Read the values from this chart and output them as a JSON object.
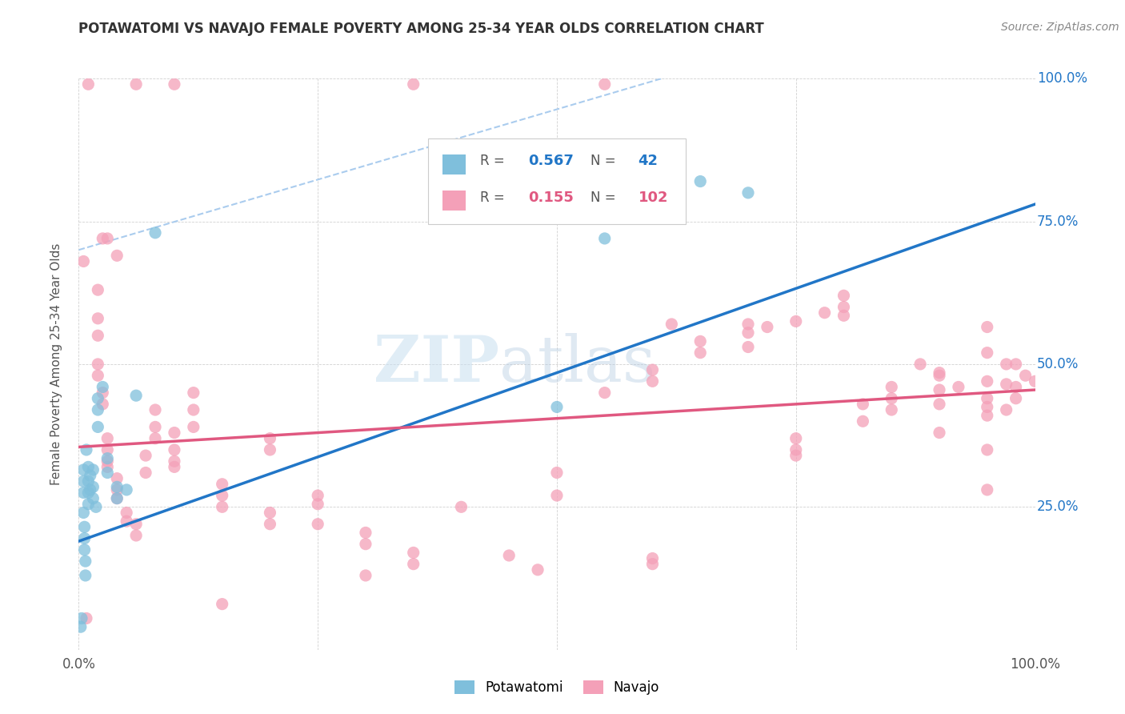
{
  "title": "POTAWATOMI VS NAVAJO FEMALE POVERTY AMONG 25-34 YEAR OLDS CORRELATION CHART",
  "source": "Source: ZipAtlas.com",
  "ylabel": "Female Poverty Among 25-34 Year Olds",
  "potawatomi_color": "#7fbfdc",
  "navajo_color": "#f4a0b8",
  "blue_line_color": "#2176c7",
  "pink_line_color": "#e05880",
  "dash_line_color": "#aaccee",
  "potawatomi_R": "0.567",
  "potawatomi_N": "42",
  "navajo_R": "0.155",
  "navajo_N": "102",
  "watermark_zip": "ZIP",
  "watermark_atlas": "atlas",
  "potawatomi_points": [
    [
      0.005,
      0.315
    ],
    [
      0.005,
      0.295
    ],
    [
      0.005,
      0.275
    ],
    [
      0.005,
      0.24
    ],
    [
      0.006,
      0.215
    ],
    [
      0.006,
      0.195
    ],
    [
      0.006,
      0.175
    ],
    [
      0.007,
      0.155
    ],
    [
      0.007,
      0.13
    ],
    [
      0.008,
      0.35
    ],
    [
      0.01,
      0.32
    ],
    [
      0.01,
      0.295
    ],
    [
      0.01,
      0.275
    ],
    [
      0.01,
      0.255
    ],
    [
      0.012,
      0.305
    ],
    [
      0.012,
      0.28
    ],
    [
      0.015,
      0.315
    ],
    [
      0.015,
      0.285
    ],
    [
      0.015,
      0.265
    ],
    [
      0.018,
      0.25
    ],
    [
      0.02,
      0.44
    ],
    [
      0.02,
      0.42
    ],
    [
      0.02,
      0.39
    ],
    [
      0.025,
      0.46
    ],
    [
      0.03,
      0.335
    ],
    [
      0.03,
      0.31
    ],
    [
      0.04,
      0.285
    ],
    [
      0.04,
      0.265
    ],
    [
      0.05,
      0.28
    ],
    [
      0.06,
      0.445
    ],
    [
      0.08,
      0.73
    ],
    [
      0.5,
      0.425
    ],
    [
      0.55,
      0.72
    ],
    [
      0.002,
      0.04
    ],
    [
      0.003,
      0.055
    ],
    [
      0.65,
      0.82
    ],
    [
      0.7,
      0.8
    ]
  ],
  "navajo_points": [
    [
      0.01,
      0.99
    ],
    [
      0.06,
      0.99
    ],
    [
      0.1,
      0.99
    ],
    [
      0.35,
      0.99
    ],
    [
      0.55,
      0.99
    ],
    [
      0.005,
      0.68
    ],
    [
      0.02,
      0.63
    ],
    [
      0.02,
      0.58
    ],
    [
      0.03,
      0.72
    ],
    [
      0.04,
      0.69
    ],
    [
      0.02,
      0.55
    ],
    [
      0.02,
      0.5
    ],
    [
      0.02,
      0.48
    ],
    [
      0.025,
      0.45
    ],
    [
      0.025,
      0.43
    ],
    [
      0.03,
      0.37
    ],
    [
      0.03,
      0.35
    ],
    [
      0.03,
      0.33
    ],
    [
      0.03,
      0.32
    ],
    [
      0.04,
      0.3
    ],
    [
      0.04,
      0.28
    ],
    [
      0.04,
      0.265
    ],
    [
      0.05,
      0.24
    ],
    [
      0.05,
      0.225
    ],
    [
      0.06,
      0.22
    ],
    [
      0.06,
      0.2
    ],
    [
      0.07,
      0.34
    ],
    [
      0.07,
      0.31
    ],
    [
      0.08,
      0.42
    ],
    [
      0.08,
      0.39
    ],
    [
      0.08,
      0.37
    ],
    [
      0.1,
      0.38
    ],
    [
      0.1,
      0.35
    ],
    [
      0.1,
      0.33
    ],
    [
      0.1,
      0.32
    ],
    [
      0.12,
      0.45
    ],
    [
      0.12,
      0.42
    ],
    [
      0.12,
      0.39
    ],
    [
      0.15,
      0.29
    ],
    [
      0.15,
      0.27
    ],
    [
      0.15,
      0.25
    ],
    [
      0.15,
      0.08
    ],
    [
      0.2,
      0.37
    ],
    [
      0.2,
      0.35
    ],
    [
      0.2,
      0.24
    ],
    [
      0.2,
      0.22
    ],
    [
      0.25,
      0.27
    ],
    [
      0.25,
      0.255
    ],
    [
      0.25,
      0.22
    ],
    [
      0.3,
      0.205
    ],
    [
      0.3,
      0.185
    ],
    [
      0.3,
      0.13
    ],
    [
      0.35,
      0.17
    ],
    [
      0.35,
      0.15
    ],
    [
      0.4,
      0.25
    ],
    [
      0.45,
      0.165
    ],
    [
      0.48,
      0.14
    ],
    [
      0.5,
      0.31
    ],
    [
      0.5,
      0.27
    ],
    [
      0.55,
      0.45
    ],
    [
      0.6,
      0.49
    ],
    [
      0.6,
      0.47
    ],
    [
      0.6,
      0.16
    ],
    [
      0.6,
      0.15
    ],
    [
      0.62,
      0.57
    ],
    [
      0.65,
      0.54
    ],
    [
      0.65,
      0.52
    ],
    [
      0.7,
      0.57
    ],
    [
      0.7,
      0.555
    ],
    [
      0.7,
      0.53
    ],
    [
      0.72,
      0.565
    ],
    [
      0.75,
      0.575
    ],
    [
      0.75,
      0.37
    ],
    [
      0.75,
      0.35
    ],
    [
      0.75,
      0.34
    ],
    [
      0.78,
      0.59
    ],
    [
      0.8,
      0.62
    ],
    [
      0.8,
      0.6
    ],
    [
      0.8,
      0.585
    ],
    [
      0.82,
      0.43
    ],
    [
      0.82,
      0.4
    ],
    [
      0.85,
      0.46
    ],
    [
      0.85,
      0.44
    ],
    [
      0.85,
      0.42
    ],
    [
      0.88,
      0.5
    ],
    [
      0.9,
      0.485
    ],
    [
      0.9,
      0.48
    ],
    [
      0.9,
      0.455
    ],
    [
      0.9,
      0.43
    ],
    [
      0.9,
      0.38
    ],
    [
      0.92,
      0.46
    ],
    [
      0.95,
      0.565
    ],
    [
      0.95,
      0.52
    ],
    [
      0.95,
      0.47
    ],
    [
      0.95,
      0.44
    ],
    [
      0.95,
      0.425
    ],
    [
      0.95,
      0.41
    ],
    [
      0.95,
      0.35
    ],
    [
      0.95,
      0.28
    ],
    [
      0.97,
      0.5
    ],
    [
      0.97,
      0.465
    ],
    [
      0.97,
      0.42
    ],
    [
      0.98,
      0.5
    ],
    [
      0.98,
      0.46
    ],
    [
      0.98,
      0.44
    ],
    [
      0.99,
      0.48
    ],
    [
      1.0,
      0.47
    ],
    [
      0.025,
      0.72
    ],
    [
      0.008,
      0.055
    ]
  ],
  "blue_line": [
    [
      0.0,
      0.19
    ],
    [
      1.0,
      0.78
    ]
  ],
  "pink_line": [
    [
      0.0,
      0.355
    ],
    [
      1.0,
      0.455
    ]
  ],
  "dash_line": [
    [
      0.0,
      0.7
    ],
    [
      0.65,
      1.02
    ]
  ]
}
